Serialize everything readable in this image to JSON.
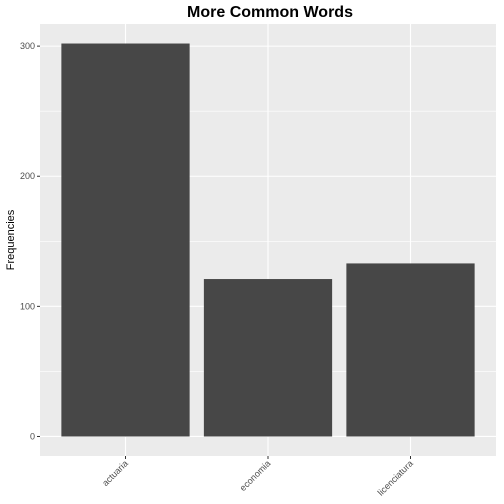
{
  "chart_data": {
    "type": "bar",
    "title": "More Common Words",
    "xlabel": "",
    "ylabel": "Frequencies",
    "categories": [
      "actuaria",
      "economia",
      "licenciatura"
    ],
    "values": [
      302,
      121,
      133
    ],
    "ylim": [
      -15,
      317
    ],
    "yticks": [
      0,
      100,
      200,
      300
    ],
    "grid": true,
    "legend": "none",
    "colors": {
      "bar": "#474747",
      "panel": "#ebebeb",
      "grid_major": "#ffffff",
      "tick_text": "#4d4d4d"
    }
  }
}
